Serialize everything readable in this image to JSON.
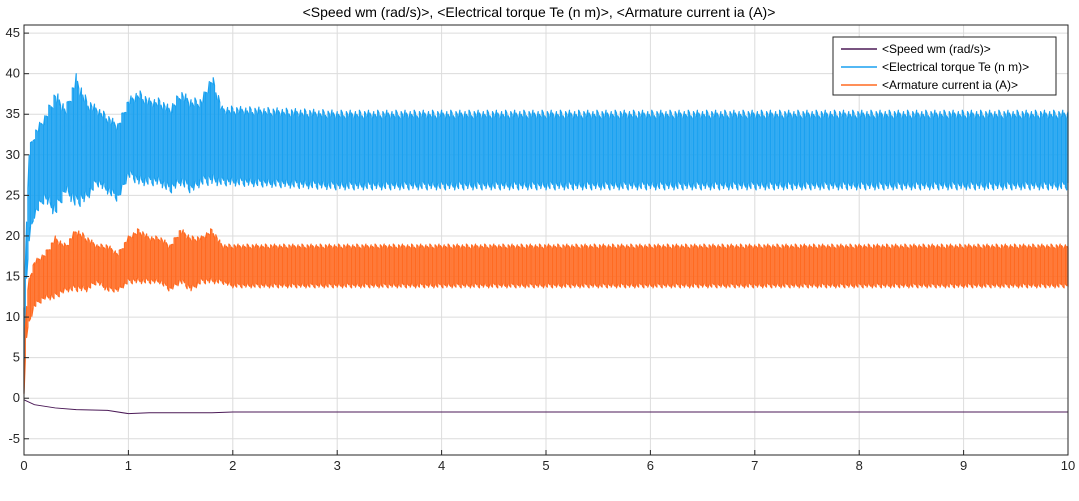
{
  "chart_data": {
    "type": "line",
    "title": "<Speed wm (rad/s)>, <Electrical torque Te (n m)>, <Armature current ia (A)>",
    "xlabel": "",
    "ylabel": "",
    "xlim": [
      0,
      10
    ],
    "ylim": [
      -7,
      46
    ],
    "xticks": [
      0,
      1,
      2,
      3,
      4,
      5,
      6,
      7,
      8,
      9,
      10
    ],
    "yticks": [
      -5,
      0,
      5,
      10,
      15,
      20,
      25,
      30,
      35,
      40,
      45
    ],
    "grid": true,
    "legend_position": "top-right",
    "series": [
      {
        "name": "<Speed wm (rad/s)>",
        "color": "#4b1a57",
        "style": "line",
        "x": [
          0,
          0.1,
          0.3,
          0.5,
          0.8,
          1.0,
          1.2,
          1.5,
          1.8,
          2.0,
          3,
          4,
          5,
          6,
          7,
          8,
          9,
          10
        ],
        "y": [
          -0.2,
          -0.8,
          -1.2,
          -1.4,
          -1.5,
          -1.9,
          -1.8,
          -1.8,
          -1.8,
          -1.7,
          -1.7,
          -1.7,
          -1.7,
          -1.7,
          -1.7,
          -1.7,
          -1.7,
          -1.7
        ]
      },
      {
        "name": "<Electrical torque Te (n m)>",
        "color": "#1aa1f0",
        "style": "oscillating-band",
        "x": [
          0,
          0.02,
          0.05,
          0.1,
          0.2,
          0.3,
          0.4,
          0.5,
          0.6,
          0.7,
          0.8,
          0.9,
          1.0,
          1.1,
          1.2,
          1.3,
          1.4,
          1.5,
          1.6,
          1.7,
          1.8,
          1.9,
          2.0,
          3,
          4,
          5,
          6,
          7,
          8,
          9,
          10
        ],
        "y_upper": [
          12,
          20,
          31,
          33,
          35,
          38,
          36,
          40,
          37,
          36,
          35,
          34,
          37,
          38,
          37,
          37,
          36,
          38,
          37,
          37,
          40,
          36,
          36,
          35.5,
          35.5,
          35.5,
          35.5,
          35.5,
          35.5,
          35.5,
          35.5
        ],
        "y_lower": [
          0,
          13,
          19,
          22,
          24,
          22,
          25,
          23,
          24,
          26,
          25,
          24,
          27,
          26,
          26,
          26,
          25,
          26,
          25,
          26,
          26,
          26,
          26,
          25.5,
          25.5,
          25.5,
          25.5,
          25.5,
          25.5,
          25.5,
          25.5
        ],
        "y_center": [
          6,
          17,
          25,
          27,
          29,
          30,
          30,
          31,
          30,
          30,
          30,
          29,
          31,
          31,
          31,
          31,
          30,
          31,
          30,
          31,
          31,
          30,
          30,
          30,
          30,
          30,
          30,
          30,
          30,
          30,
          30
        ]
      },
      {
        "name": "<Armature current ia (A)>",
        "color": "#ff6a21",
        "style": "oscillating-band",
        "x": [
          0,
          0.02,
          0.05,
          0.1,
          0.2,
          0.3,
          0.4,
          0.5,
          0.6,
          0.7,
          0.8,
          0.9,
          1.0,
          1.1,
          1.2,
          1.3,
          1.4,
          1.5,
          1.6,
          1.7,
          1.8,
          1.9,
          2.0,
          3,
          4,
          5,
          6,
          7,
          8,
          9,
          10
        ],
        "y_upper": [
          5,
          11,
          15,
          17,
          18,
          20,
          19,
          21,
          20,
          19,
          19,
          18,
          20,
          21,
          20,
          20,
          19,
          21,
          20,
          20,
          21,
          19,
          19,
          19,
          19,
          19,
          19,
          19,
          19,
          19,
          19
        ],
        "y_lower": [
          0,
          7,
          9,
          11,
          12,
          12,
          13,
          13,
          13,
          14,
          13,
          13,
          14,
          14,
          14,
          14,
          13,
          14,
          13,
          14,
          14,
          14,
          13.5,
          13.5,
          13.5,
          13.5,
          13.5,
          13.5,
          13.5,
          13.5,
          13.5
        ],
        "y_center": [
          2.5,
          9,
          12,
          14,
          15,
          16,
          16,
          17,
          16,
          16,
          16,
          15.5,
          17,
          17,
          17,
          17,
          16,
          17,
          16,
          17,
          17,
          16,
          16,
          16,
          16,
          16,
          16,
          16,
          16,
          16,
          16
        ]
      }
    ]
  }
}
